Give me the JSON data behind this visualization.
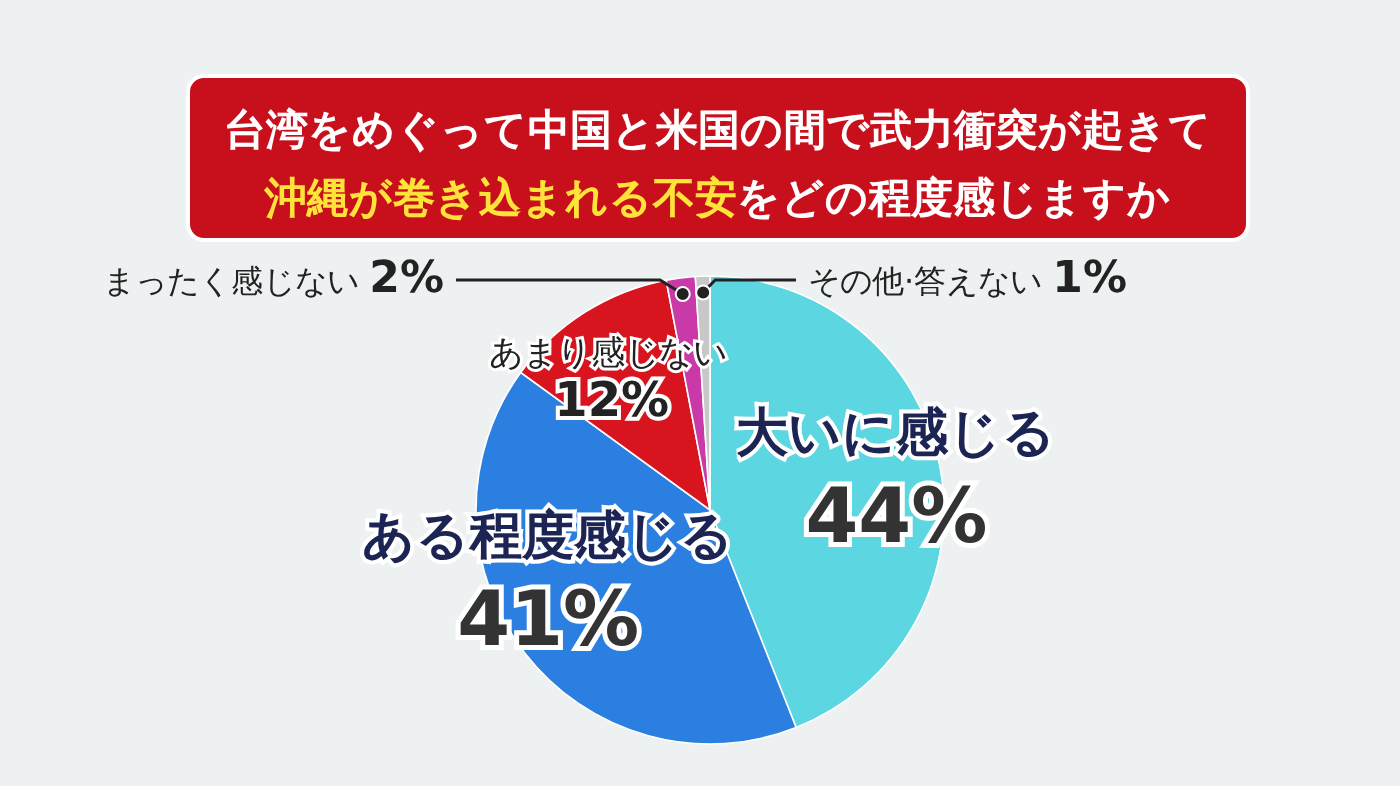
{
  "chart_data": {
    "type": "pie",
    "title": "台湾をめぐって中国と米国の間で武力衝突が起きて",
    "subtitle": "**沖縄が巻き込まれる不安**をどの程度感じますか",
    "categories": [
      "大いに感じる",
      "ある程度感じる",
      "あまり感じない",
      "まったく感じない",
      "その他·答えない"
    ],
    "values": [
      44,
      41,
      12,
      2,
      1
    ],
    "value_labels": [
      "44%",
      "41%",
      "12%",
      "2%",
      "1%"
    ],
    "colors": [
      "#5cd6e0",
      "#2b7fe0",
      "#d8141e",
      "#c93aa8",
      "#c8c8c8"
    ]
  }
}
